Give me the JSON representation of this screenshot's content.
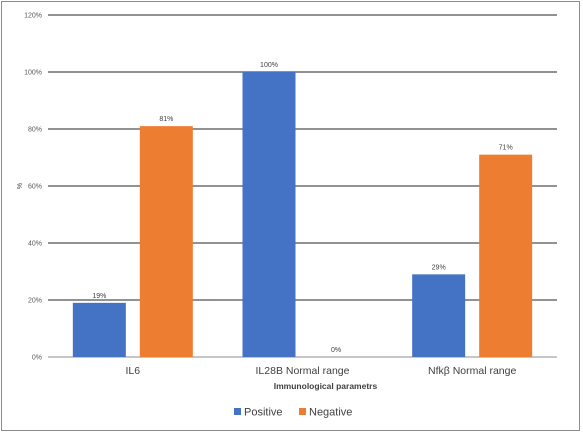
{
  "chart_data": {
    "type": "bar",
    "title": "",
    "xlabel": "Immunological parametrs",
    "ylabel": "%",
    "categories": [
      "IL6",
      "IL28B Normal range",
      "Nfkβ Normal range"
    ],
    "series": [
      {
        "name": "Positive",
        "color": "#4472c4",
        "values": [
          19,
          100,
          29
        ],
        "labels": [
          "19%",
          "100%",
          "29%"
        ]
      },
      {
        "name": "Negative",
        "color": "#ed7d31",
        "values": [
          81,
          0,
          71
        ],
        "labels": [
          "81%",
          "0%",
          "71%"
        ]
      }
    ],
    "ylim": [
      0,
      120
    ],
    "yticks": [
      0,
      20,
      40,
      60,
      80,
      100,
      120
    ],
    "ytick_labels": [
      "0%",
      "20%",
      "40%",
      "60%",
      "80%",
      "100%",
      "120%"
    ],
    "grid": true,
    "legend_position": "bottom"
  }
}
